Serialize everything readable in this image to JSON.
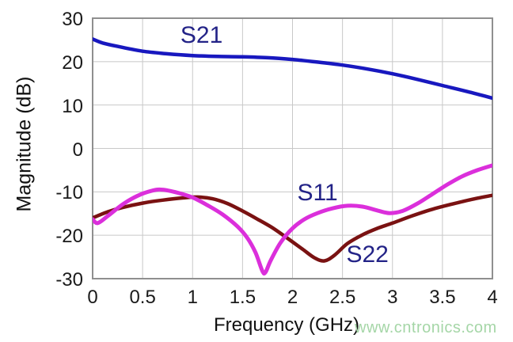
{
  "watermark": {
    "text": "www.cntronics.com",
    "color": "#a5d6a7"
  },
  "chart_data": {
    "type": "line",
    "title": "",
    "xlabel": "Frequency (GHz)",
    "ylabel": "Magnitude (dB)",
    "xlim": [
      0,
      4
    ],
    "ylim": [
      -30,
      30
    ],
    "grid": true,
    "legend_position": "inline-annotations",
    "x_ticks": [
      0,
      0.5,
      1,
      1.5,
      2,
      2.5,
      3,
      3.5,
      4
    ],
    "x_tick_labels": [
      "0",
      "0.5",
      "1",
      "1.5",
      "2",
      "2.5",
      "3",
      "3.5",
      "4"
    ],
    "y_ticks": [
      30,
      20,
      10,
      0,
      -10,
      -20,
      -30
    ],
    "y_tick_labels": [
      "30",
      "20",
      "10",
      "0",
      "-10",
      "-20",
      "-30"
    ],
    "colors": {
      "grid": "#c8c8c8",
      "border": "#8f8f8f",
      "tick_text": "#1a1a1a",
      "annotation_text": "#232387"
    },
    "series": [
      {
        "name": "S22",
        "color": "#7a1212",
        "points": [
          [
            0,
            -16.0
          ],
          [
            0.15,
            -14.6
          ],
          [
            0.3,
            -13.6
          ],
          [
            0.5,
            -12.6
          ],
          [
            0.7,
            -11.9
          ],
          [
            0.9,
            -11.4
          ],
          [
            1.05,
            -11.2
          ],
          [
            1.2,
            -11.6
          ],
          [
            1.35,
            -12.7
          ],
          [
            1.5,
            -14.4
          ],
          [
            1.65,
            -16.3
          ],
          [
            1.8,
            -18.3
          ],
          [
            1.95,
            -20.7
          ],
          [
            2.1,
            -23.2
          ],
          [
            2.22,
            -25.2
          ],
          [
            2.32,
            -25.9
          ],
          [
            2.42,
            -24.6
          ],
          [
            2.55,
            -21.9
          ],
          [
            2.7,
            -19.9
          ],
          [
            2.85,
            -18.4
          ],
          [
            3.0,
            -17.2
          ],
          [
            3.2,
            -15.5
          ],
          [
            3.4,
            -14.0
          ],
          [
            3.6,
            -12.8
          ],
          [
            3.8,
            -11.7
          ],
          [
            4.0,
            -10.8
          ]
        ]
      },
      {
        "name": "S11",
        "color": "#db2fdb",
        "points": [
          [
            0,
            -16.3
          ],
          [
            0.05,
            -17.2
          ],
          [
            0.15,
            -15.6
          ],
          [
            0.3,
            -12.9
          ],
          [
            0.45,
            -10.9
          ],
          [
            0.6,
            -9.7
          ],
          [
            0.7,
            -9.5
          ],
          [
            0.85,
            -10.2
          ],
          [
            1.0,
            -11.3
          ],
          [
            1.15,
            -13.1
          ],
          [
            1.3,
            -15.2
          ],
          [
            1.45,
            -18.0
          ],
          [
            1.55,
            -20.7
          ],
          [
            1.63,
            -24.0
          ],
          [
            1.7,
            -28.3
          ],
          [
            1.73,
            -28.5
          ],
          [
            1.78,
            -25.9
          ],
          [
            1.88,
            -21.7
          ],
          [
            2.0,
            -18.4
          ],
          [
            2.12,
            -16.3
          ],
          [
            2.25,
            -14.9
          ],
          [
            2.4,
            -13.8
          ],
          [
            2.55,
            -13.2
          ],
          [
            2.7,
            -13.4
          ],
          [
            2.85,
            -14.3
          ],
          [
            2.97,
            -14.9
          ],
          [
            3.1,
            -14.4
          ],
          [
            3.25,
            -12.7
          ],
          [
            3.4,
            -10.5
          ],
          [
            3.55,
            -8.3
          ],
          [
            3.7,
            -6.4
          ],
          [
            3.85,
            -5.0
          ],
          [
            4.0,
            -3.9
          ]
        ]
      },
      {
        "name": "S21",
        "color": "#1818bf",
        "points": [
          [
            0,
            25.2
          ],
          [
            0.1,
            24.3
          ],
          [
            0.25,
            23.5
          ],
          [
            0.5,
            22.4
          ],
          [
            0.75,
            21.8
          ],
          [
            1.0,
            21.4
          ],
          [
            1.25,
            21.2
          ],
          [
            1.5,
            21.1
          ],
          [
            1.75,
            20.9
          ],
          [
            2.0,
            20.5
          ],
          [
            2.25,
            19.9
          ],
          [
            2.5,
            19.2
          ],
          [
            2.75,
            18.3
          ],
          [
            3.0,
            17.2
          ],
          [
            3.25,
            15.9
          ],
          [
            3.5,
            14.5
          ],
          [
            3.75,
            13.1
          ],
          [
            4.0,
            11.6
          ]
        ]
      }
    ],
    "annotations": [
      {
        "text": "S21",
        "f": 1.09,
        "db": 25.9
      },
      {
        "text": "S11",
        "f": 2.25,
        "db": -10.3
      },
      {
        "text": "S22",
        "f": 2.75,
        "db": -24.5
      }
    ]
  }
}
